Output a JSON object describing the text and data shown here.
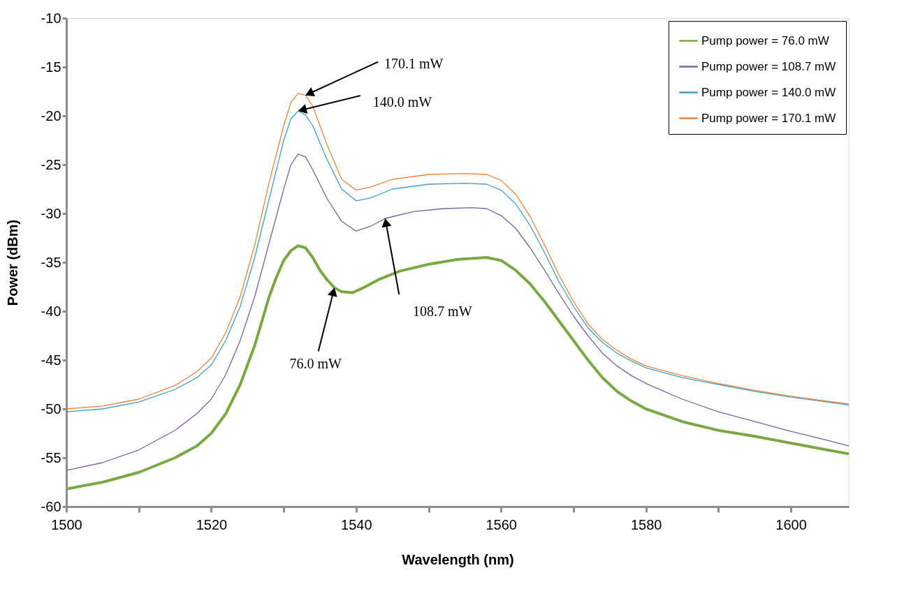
{
  "chart_data": {
    "type": "line",
    "xlabel": "Wavelength (nm)",
    "ylabel": "Power (dBm)",
    "xlim": [
      1500,
      1608
    ],
    "ylim": [
      -60,
      -10
    ],
    "xticks": [
      1500,
      {
        "value": 1510,
        "label": null
      },
      1520,
      {
        "value": 1530,
        "label": null
      },
      1540,
      {
        "value": 1550,
        "label": null
      },
      1560,
      {
        "value": 1570,
        "label": null
      },
      1580,
      {
        "value": 1590,
        "label": null
      },
      1600
    ],
    "yticks": [
      -60,
      -55,
      -50,
      -45,
      -40,
      -35,
      -30,
      -25,
      -20,
      -15,
      -10
    ],
    "grid": false,
    "legend": "top right",
    "marker": "none",
    "line_style": "solid",
    "series": [
      {
        "name": "Pump power = 76.0 mW",
        "color": "#7aa843",
        "x": [
          1500,
          1505,
          1510,
          1515,
          1518,
          1520,
          1522,
          1524,
          1526,
          1528,
          1529,
          1530,
          1531,
          1532,
          1533,
          1534,
          1535,
          1536,
          1537,
          1538,
          1539.5,
          1541,
          1543,
          1546,
          1550,
          1554,
          1558,
          1560,
          1562,
          1564,
          1566,
          1568,
          1570,
          1572,
          1574,
          1576,
          1578,
          1580,
          1585,
          1590,
          1595,
          1600,
          1605,
          1608
        ],
        "values": [
          -58.2,
          -57.5,
          -56.5,
          -55,
          -53.8,
          -52.5,
          -50.5,
          -47.5,
          -43.5,
          -38.5,
          -36.5,
          -34.8,
          -33.8,
          -33.3,
          -33.5,
          -34.5,
          -35.8,
          -36.8,
          -37.6,
          -38,
          -38.1,
          -37.6,
          -36.8,
          -35.9,
          -35.2,
          -34.7,
          -34.5,
          -34.8,
          -35.8,
          -37.2,
          -39,
          -41,
          -43,
          -45,
          -46.8,
          -48.2,
          -49.2,
          -50,
          -51.3,
          -52.2,
          -52.8,
          -53.5,
          -54.2,
          -54.6
        ]
      },
      {
        "name": "Pump power = 108.7 mW",
        "color": "#7b5fa0",
        "x": [
          1500,
          1505,
          1510,
          1515,
          1518,
          1520,
          1522,
          1524,
          1526,
          1528,
          1530,
          1531,
          1532,
          1533,
          1534,
          1536,
          1538,
          1540,
          1542,
          1544,
          1548,
          1552,
          1556,
          1558,
          1560,
          1562,
          1564,
          1566,
          1568,
          1570,
          1572,
          1574,
          1576,
          1578,
          1580,
          1585,
          1590,
          1595,
          1600,
          1605,
          1608
        ],
        "values": [
          -56.3,
          -55.5,
          -54.2,
          -52.2,
          -50.5,
          -49,
          -46.5,
          -43,
          -38.5,
          -33,
          -27.5,
          -25,
          -23.9,
          -24.2,
          -25.5,
          -28.5,
          -30.8,
          -31.8,
          -31.3,
          -30.5,
          -29.8,
          -29.5,
          -29.4,
          -29.5,
          -30.2,
          -31.5,
          -33.5,
          -35.8,
          -38.2,
          -40.5,
          -42.5,
          -44.3,
          -45.6,
          -46.6,
          -47.4,
          -49,
          -50.3,
          -51.3,
          -52.3,
          -53.2,
          -53.8
        ]
      },
      {
        "name": "Pump power = 140.0 mW",
        "color": "#3fa0c0",
        "x": [
          1500,
          1505,
          1510,
          1515,
          1518,
          1520,
          1522,
          1524,
          1526,
          1528,
          1530,
          1531,
          1532,
          1533,
          1534,
          1536,
          1538,
          1540,
          1542,
          1545,
          1550,
          1555,
          1558,
          1560,
          1562,
          1564,
          1566,
          1568,
          1570,
          1572,
          1574,
          1576,
          1578,
          1580,
          1585,
          1590,
          1595,
          1600,
          1605,
          1608
        ],
        "values": [
          -50.3,
          -50,
          -49.3,
          -48,
          -46.8,
          -45.5,
          -43,
          -39.5,
          -34.5,
          -28.5,
          -22.5,
          -20.3,
          -19.5,
          -19.9,
          -21,
          -24.5,
          -27.5,
          -28.7,
          -28.4,
          -27.5,
          -27,
          -26.9,
          -27,
          -27.6,
          -29,
          -31.2,
          -34,
          -37,
          -39.5,
          -41.7,
          -43.2,
          -44.3,
          -45.1,
          -45.8,
          -46.8,
          -47.5,
          -48.2,
          -48.8,
          -49.3,
          -49.6
        ]
      },
      {
        "name": "Pump power = 170.1 mW",
        "color": "#e8833a",
        "x": [
          1500,
          1505,
          1510,
          1515,
          1518,
          1520,
          1522,
          1524,
          1526,
          1528,
          1530,
          1531,
          1532,
          1533,
          1534,
          1536,
          1538,
          1540,
          1542,
          1545,
          1550,
          1555,
          1558,
          1560,
          1562,
          1564,
          1566,
          1568,
          1570,
          1572,
          1574,
          1576,
          1578,
          1580,
          1585,
          1590,
          1595,
          1600,
          1605,
          1608
        ],
        "values": [
          -50,
          -49.7,
          -49,
          -47.6,
          -46.2,
          -44.8,
          -42.2,
          -38.5,
          -33.2,
          -26.8,
          -21,
          -18.6,
          -17.7,
          -17.9,
          -19,
          -23,
          -26.5,
          -27.6,
          -27.3,
          -26.5,
          -26,
          -25.9,
          -26,
          -26.6,
          -28,
          -30.3,
          -33.2,
          -36.3,
          -39,
          -41.3,
          -42.9,
          -44,
          -44.9,
          -45.6,
          -46.6,
          -47.4,
          -48.1,
          -48.7,
          -49.2,
          -49.5
        ]
      }
    ],
    "annotations": [
      {
        "text": "170.1 mW",
        "x": 1533,
        "y": -17.9
      },
      {
        "text": "140.0 mW",
        "x": 1532,
        "y": -19.5
      },
      {
        "text": "108.7 mW",
        "x": 1544,
        "y": -30.5
      },
      {
        "text": "76.0 mW",
        "x": 1537,
        "y": -37.6
      }
    ]
  }
}
